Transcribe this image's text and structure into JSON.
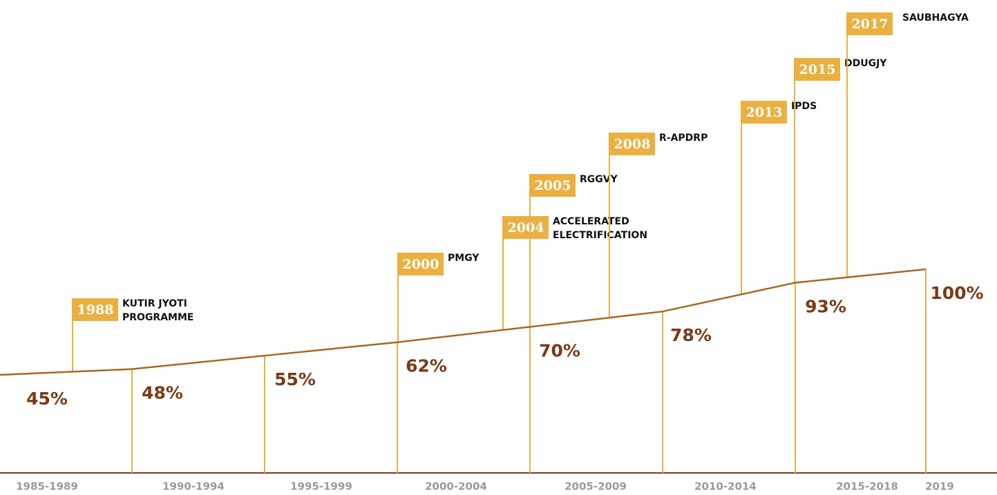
{
  "chart_data": {
    "type": "line",
    "categories": [
      "1985-1989",
      "1990-1994",
      "1995-1999",
      "2000-2004",
      "2005-2009",
      "2010-2014",
      "2015-2018",
      "2019"
    ],
    "values": [
      45,
      48,
      55,
      62,
      70,
      78,
      93,
      100
    ],
    "value_labels": [
      "45%",
      "48%",
      "55%",
      "62%",
      "70%",
      "78%",
      "93%",
      "100%"
    ],
    "color": "#a8671f",
    "milestones": [
      {
        "year": "1988",
        "lines": [
          "KUTIR JYOTI",
          "PROGRAMME"
        ]
      },
      {
        "year": "2000",
        "lines": [
          "PMGY"
        ]
      },
      {
        "year": "2004",
        "lines": [
          "ACCELERATED",
          "ELECTRIFICATION"
        ]
      },
      {
        "year": "2005",
        "lines": [
          "RGGVY"
        ]
      },
      {
        "year": "2008",
        "lines": [
          "R-APDRP"
        ]
      },
      {
        "year": "2013",
        "lines": [
          "IPDS"
        ]
      },
      {
        "year": "2015",
        "lines": [
          "DDUGJY"
        ]
      },
      {
        "year": "2017",
        "lines": [
          "SAUBHAGYA"
        ]
      }
    ]
  }
}
